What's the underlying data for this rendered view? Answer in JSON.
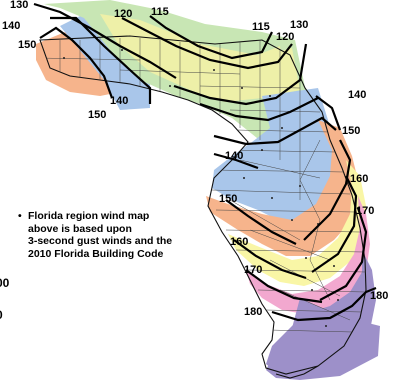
{
  "zones": [
    {
      "speed": "130",
      "color": "#c8e6b4"
    },
    {
      "speed": "140",
      "color": "#a9c6ea"
    },
    {
      "speed": "150",
      "color": "#f6b48c"
    },
    {
      "speed": "120",
      "color": "#eef0a8"
    },
    {
      "speed": "115",
      "color": "#eef0a8"
    },
    {
      "speed": "160",
      "color": "#f9f6a6"
    },
    {
      "speed": "170",
      "color": "#f2a8cf"
    },
    {
      "speed": "180",
      "color": "#9d90c9"
    }
  ],
  "contour_labels": {
    "nw_130": "130",
    "nw_140": "140",
    "nw_150": "150",
    "top_120": "120",
    "top_115": "115",
    "panhandle_140": "140",
    "panhandle_150": "150",
    "ne_115": "115",
    "ne_130": "130",
    "ne_120": "120",
    "east_140": "140",
    "east_150": "150",
    "east_160": "160",
    "east_170": "170",
    "west_140": "140",
    "west_150": "150",
    "west_160": "160",
    "west_170": "170",
    "south_180": "180",
    "se_180": "180"
  },
  "left_edge_cut": {
    "upper": "00",
    "lower": "0"
  },
  "note": {
    "line1": "Florida region wind map",
    "line2": "above is based upon",
    "line3": "3-second gust winds and the",
    "line4": "2010 Florida Building Code"
  }
}
